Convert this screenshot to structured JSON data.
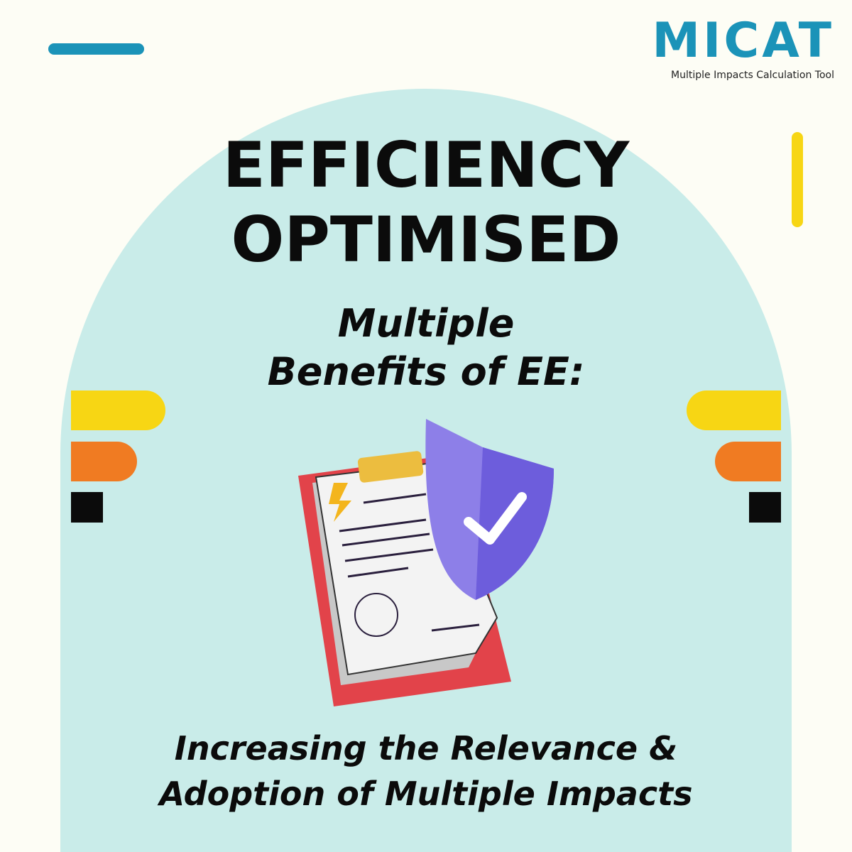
{
  "logo": {
    "name": "MICAT",
    "tagline": "Multiple Impacts Calculation Tool"
  },
  "heading": {
    "line1": "EFFICIENCY",
    "line2": "OPTIMISED"
  },
  "subheading": {
    "line1": "Multiple",
    "line2": "Benefits of EE:"
  },
  "footer": {
    "line1": "Increasing the Relevance &",
    "line2": "Adoption of Multiple Impacts"
  }
}
